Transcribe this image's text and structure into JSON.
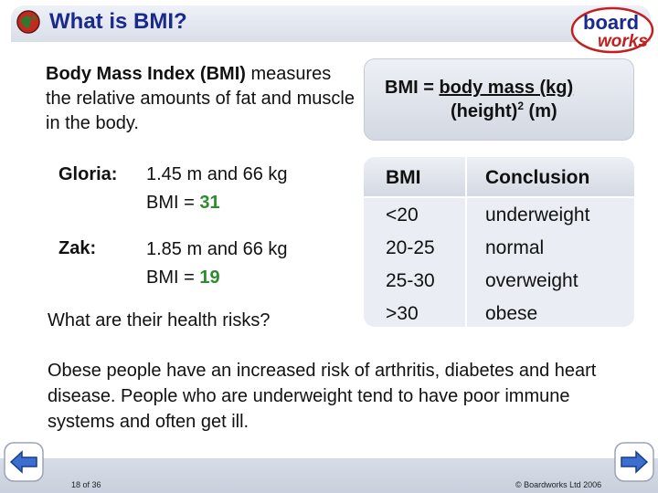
{
  "header": {
    "title": "What is BMI?",
    "logo_top": "board",
    "logo_bottom": "works"
  },
  "intro": {
    "bold": "Body Mass Index (BMI)",
    "rest": "measures the relative amounts of fat and muscle in the body."
  },
  "formula": {
    "lhs": "BMI = ",
    "numerator": "body mass (kg)",
    "denominator_pre": "(height)",
    "denominator_sup": "2",
    "denominator_post": " (m)"
  },
  "people": [
    {
      "label": "Gloria:",
      "stats": "1.45 m and 66 kg",
      "bmi_prefix": "BMI = ",
      "bmi_value": "31"
    },
    {
      "label": "Zak:",
      "stats": "1.85 m and 66 kg",
      "bmi_prefix": "BMI = ",
      "bmi_value": "19"
    }
  ],
  "question": "What are their health risks?",
  "table": {
    "headers": [
      "BMI",
      "Conclusion"
    ],
    "rows": [
      [
        "<20",
        "underweight"
      ],
      [
        "20-25",
        "normal"
      ],
      [
        "25-30",
        "overweight"
      ],
      [
        ">30",
        "obese"
      ]
    ]
  },
  "summary": "Obese people have an increased risk of arthritis, diabetes and heart disease. People who are underweight tend to have poor immune systems and often get ill.",
  "footer": {
    "page": "18 of 36",
    "copyright": "© Boardworks Ltd 2006"
  },
  "colors": {
    "title": "#1a2a8c",
    "bmi_value": "#2e8a2e",
    "logo_red": "#c02020"
  },
  "icons": {
    "title_icon": "globe-icon",
    "prev": "arrow-left-icon",
    "next": "arrow-right-icon"
  }
}
